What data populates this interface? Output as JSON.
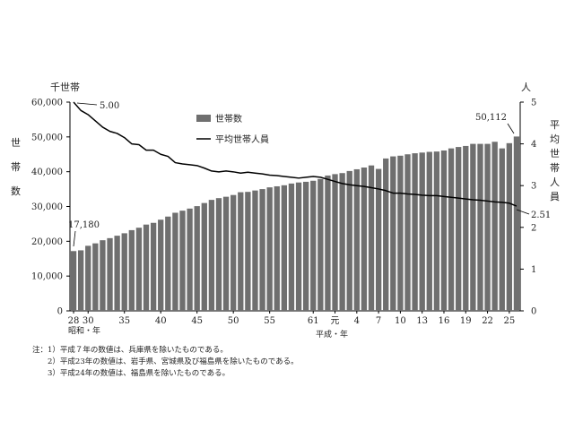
{
  "chart_data": {
    "type": "bar",
    "left_axis": {
      "unit_label": "千世帯",
      "title_chars": [
        "世",
        "帯",
        "数"
      ],
      "ticks": [
        "0",
        "10,000",
        "20,000",
        "30,000",
        "40,000",
        "50,000",
        "60,000"
      ],
      "range": [
        0,
        60000
      ]
    },
    "right_axis": {
      "unit_label": "人",
      "title_chars": [
        "平",
        "均",
        "世",
        "帯",
        "人",
        "員"
      ],
      "ticks": [
        "0",
        "1",
        "2",
        "3",
        "4",
        "5"
      ],
      "range": [
        0,
        5
      ]
    },
    "x_ticks": [
      "28",
      "30",
      "35",
      "40",
      "45",
      "50",
      "55",
      "61",
      "元",
      "4",
      "7",
      "10",
      "13",
      "16",
      "19",
      "22",
      "25"
    ],
    "x_tick_index": [
      0,
      2,
      7,
      12,
      17,
      22,
      27,
      33,
      36,
      39,
      42,
      45,
      48,
      51,
      54,
      57,
      60
    ],
    "era_labels": {
      "showa": "昭和・年",
      "heisei": "平成・年"
    },
    "legend": {
      "households": "世帯数",
      "avg_size": "平均世帯人員"
    },
    "annotations": {
      "first_bar": "17,180",
      "last_bar": "50,112",
      "first_avg": "5.00",
      "last_avg": "2.51"
    },
    "series": [
      {
        "name": "世帯数",
        "axis": "left",
        "values": [
          17180,
          17400,
          18700,
          19400,
          20300,
          20900,
          21600,
          22300,
          23200,
          23900,
          24800,
          25300,
          26200,
          27100,
          28200,
          28800,
          29400,
          30100,
          31000,
          31900,
          32400,
          32800,
          33300,
          34100,
          34200,
          34600,
          35000,
          35500,
          35800,
          36100,
          36600,
          36900,
          37100,
          37400,
          37900,
          38900,
          39300,
          39600,
          40200,
          40700,
          41200,
          41800,
          40800,
          43800,
          44400,
          44600,
          45000,
          45300,
          45500,
          45700,
          45800,
          46100,
          46700,
          47100,
          47400,
          48000,
          48000,
          48000,
          48600,
          46700,
          48200,
          50112
        ]
      },
      {
        "name": "平均世帯人員",
        "axis": "right",
        "values": [
          5.0,
          4.8,
          4.7,
          4.55,
          4.4,
          4.3,
          4.25,
          4.15,
          4.0,
          3.98,
          3.85,
          3.85,
          3.75,
          3.7,
          3.55,
          3.52,
          3.5,
          3.48,
          3.42,
          3.35,
          3.33,
          3.35,
          3.33,
          3.3,
          3.32,
          3.3,
          3.28,
          3.25,
          3.24,
          3.22,
          3.2,
          3.18,
          3.2,
          3.22,
          3.2,
          3.15,
          3.1,
          3.05,
          3.02,
          3.0,
          2.98,
          2.95,
          2.92,
          2.88,
          2.82,
          2.82,
          2.8,
          2.79,
          2.77,
          2.76,
          2.76,
          2.74,
          2.72,
          2.7,
          2.68,
          2.66,
          2.65,
          2.63,
          2.61,
          2.6,
          2.58,
          2.51
        ]
      }
    ]
  },
  "notes": [
    "注：1）平成７年の数値は、兵庫県を除いたものである。",
    "　　2）平成23年の数値は、岩手県、宮城県及び福島県を除いたものである。",
    "　　3）平成24年の数値は、福島県を除いたものである。"
  ]
}
